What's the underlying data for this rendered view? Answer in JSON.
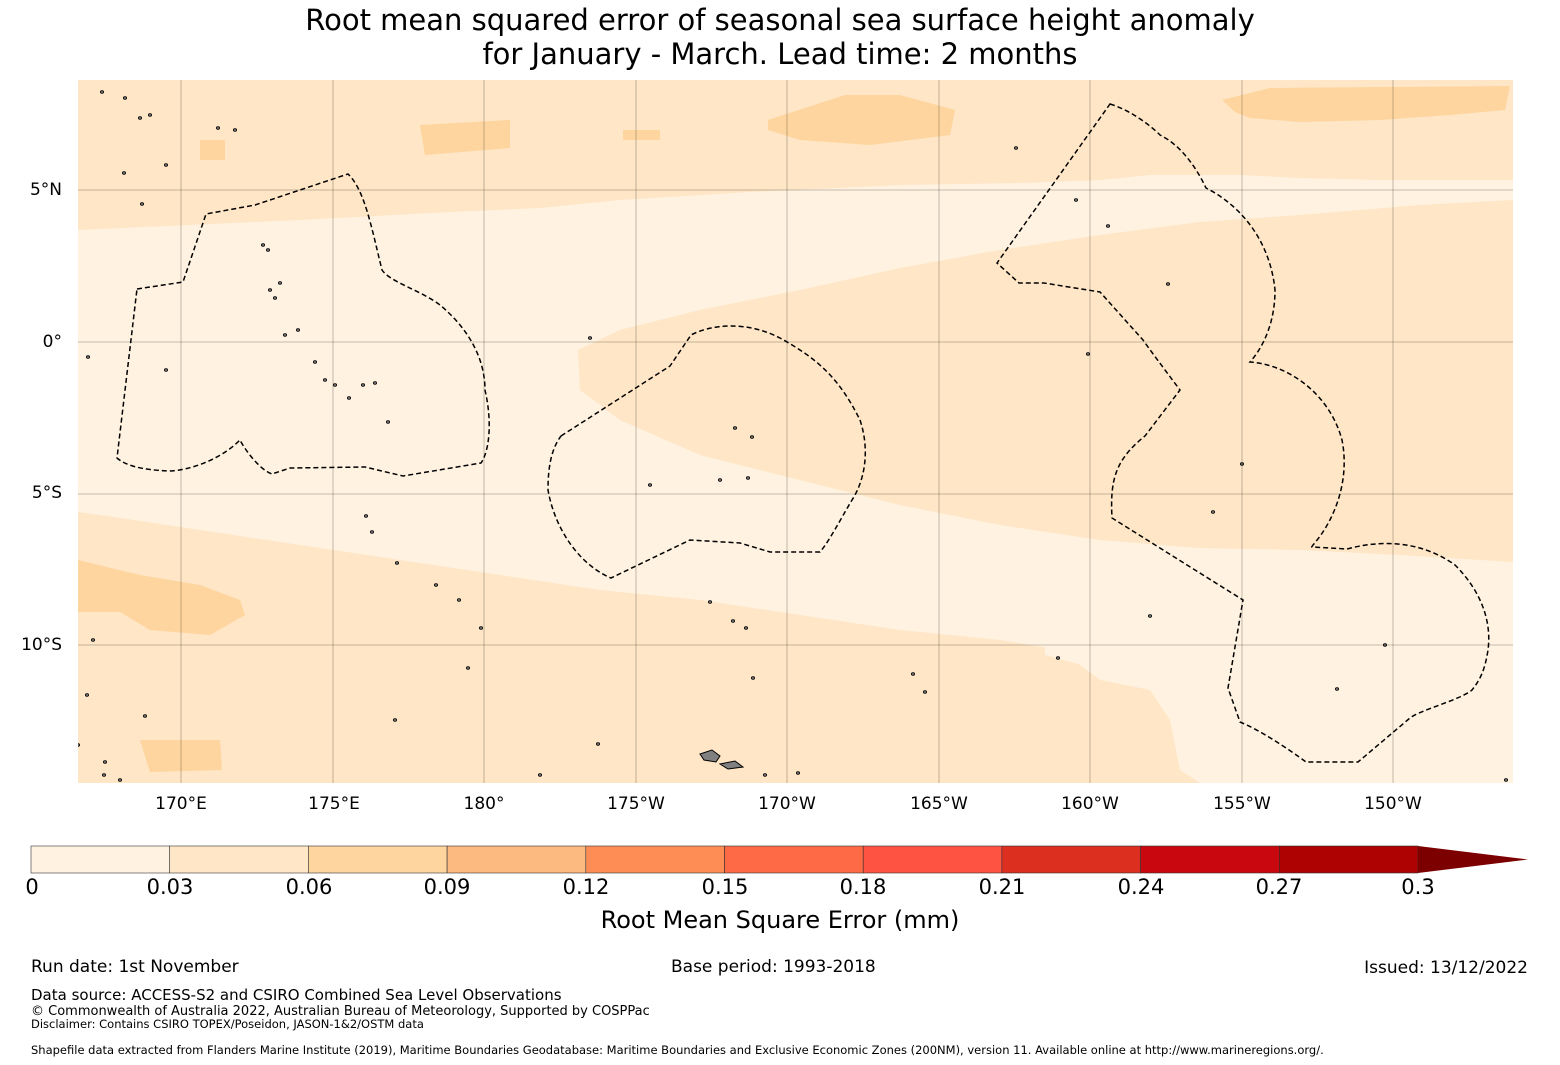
{
  "title_line1": "Root mean squared error of seasonal sea surface height anomaly",
  "title_line2": "for January - March. Lead time: 2 months",
  "map": {
    "lat_labels": [
      "5°N",
      "0°",
      "5°S",
      "10°S"
    ],
    "lon_labels": [
      "170°E",
      "175°E",
      "180°",
      "175°W",
      "170°W",
      "165°W",
      "160°W",
      "155°W",
      "150°W"
    ],
    "bin_colors": [
      "#fff2e0",
      "#ffe6c6",
      "#fed59e"
    ],
    "coastline_color": "#000000",
    "eez_style": "dashed black",
    "land_color": "#808080"
  },
  "colorbar": {
    "label": "Root Mean Square Error (mm)",
    "ticks": [
      "0",
      "0.03",
      "0.06",
      "0.09",
      "0.12",
      "0.15",
      "0.18",
      "0.21",
      "0.24",
      "0.27",
      "0.3"
    ],
    "colors": [
      "#fff2e0",
      "#ffe6c6",
      "#fed59e",
      "#fdba80",
      "#fd8d55",
      "#fe6a46",
      "#fe5242",
      "#dd2f20",
      "#c8080e",
      "#ae0101",
      "#7c0000"
    ],
    "extend": "max"
  },
  "footer": {
    "run_date": "Run date: 1st November",
    "base_period": "Base period: 1993-2018",
    "issued": "Issued: 13/12/2022",
    "data_source": "Data source: ACCESS-S2 and CSIRO Combined Sea Level Observations",
    "copyright": "© Commonwealth of Australia 2022, Australian Bureau of Meteorology, Supported by COSPPac",
    "disclaimer": "Disclaimer: Contains CSIRO TOPEX/Poseidon, JASON-1&2/OSTM data",
    "shapefile": "Shapefile data extracted from Flanders Marine Institute (2019), Maritime Boundaries Geodatabase: Maritime Boundaries and Exclusive Economic Zones (200NM), version 11. Available online at http://www.marineregions.org/."
  }
}
